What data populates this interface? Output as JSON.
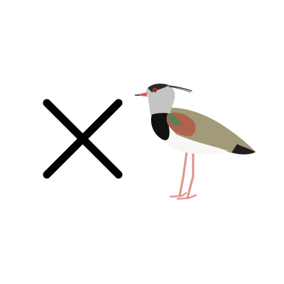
{
  "background_color": "#ffffff",
  "icons": [
    {
      "name": "close-icon",
      "color": "#000000"
    },
    {
      "name": "lapwing-bird-illustration"
    }
  ],
  "colors": {
    "cross": "#000000",
    "bird_head": "#c4c4c2",
    "bird_bib": "#111111",
    "bird_belly": "#f7f7f5",
    "bird_back": "#a29a78",
    "bird_shoulder": "#b0624d",
    "bird_green_sheen": "#5d7f57",
    "bird_legs": "#e0978d",
    "bird_eye": "#c0392b"
  }
}
